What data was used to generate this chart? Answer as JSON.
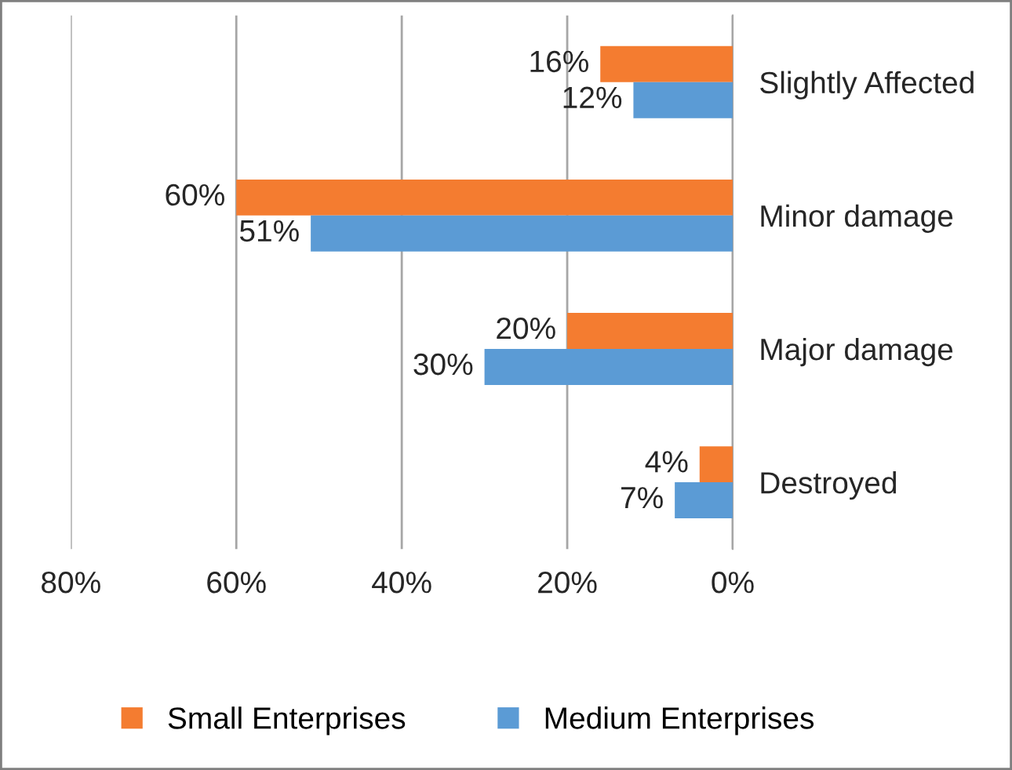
{
  "chart_data": {
    "type": "bar",
    "orientation": "horizontal",
    "categories": [
      "Slightly Affected",
      "Minor damage",
      "Major damage",
      "Destroyed"
    ],
    "series": [
      {
        "name": "Small Enterprises",
        "color": "#f47c30",
        "values": [
          16,
          60,
          20,
          4
        ],
        "value_labels": [
          "16%",
          "60%",
          "20%",
          "4%"
        ]
      },
      {
        "name": "Medium Enterprises",
        "color": "#5b9bd5",
        "values": [
          12,
          51,
          30,
          7
        ],
        "value_labels": [
          "12%",
          "51%",
          "30%",
          "7%"
        ]
      }
    ],
    "xlim": [
      80,
      0
    ],
    "xticks": [
      {
        "value": 80,
        "label": "80%"
      },
      {
        "value": 60,
        "label": "60%"
      },
      {
        "value": 40,
        "label": "40%"
      },
      {
        "value": 20,
        "label": "20%"
      },
      {
        "value": 0,
        "label": "0%"
      }
    ],
    "grid": "x",
    "legend": "bottom"
  }
}
